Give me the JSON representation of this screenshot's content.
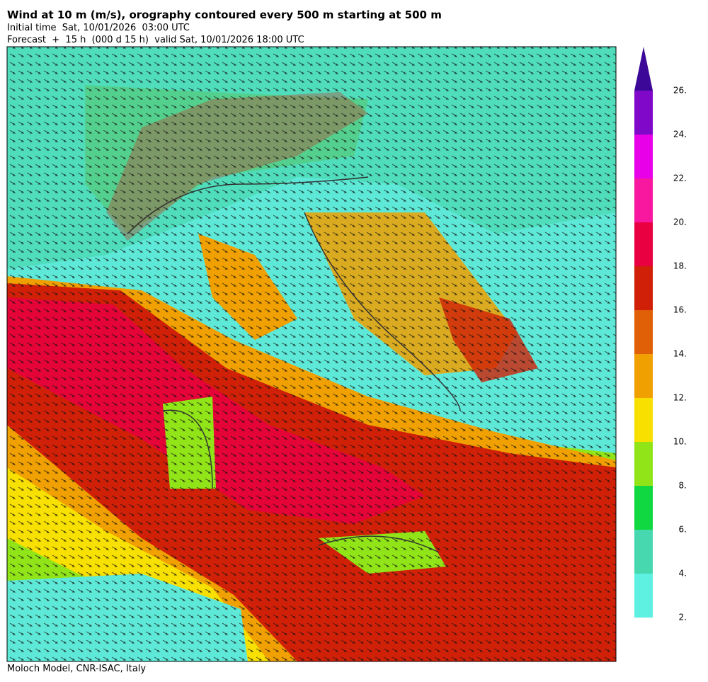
{
  "header": {
    "title": "Wind at 10 m (m/s), orography contoured every 500 m starting at 500 m",
    "initial_time": "Initial time  Sat, 10/01/2026  03:00 UTC",
    "forecast": "Forecast  +  15 h  (000 d 15 h)  valid Sat, 10/01/2026 18:00 UTC"
  },
  "colorbar": {
    "labels": [
      "26.",
      "24.",
      "22.",
      "20.",
      "18.",
      "16.",
      "14.",
      "12.",
      "10.",
      "8.",
      "6.",
      "4.",
      "2."
    ],
    "colors": [
      "#5ef0e0",
      "#48d8b0",
      "#10d840",
      "#90e418",
      "#f8e000",
      "#f0a000",
      "#e06008",
      "#d02008",
      "#e80040",
      "#f818a0",
      "#e800e8",
      "#8008c8"
    ],
    "extend_color": "#3c0898"
  },
  "footer": "Moloch Model, CNR-ISAC, Italy"
}
